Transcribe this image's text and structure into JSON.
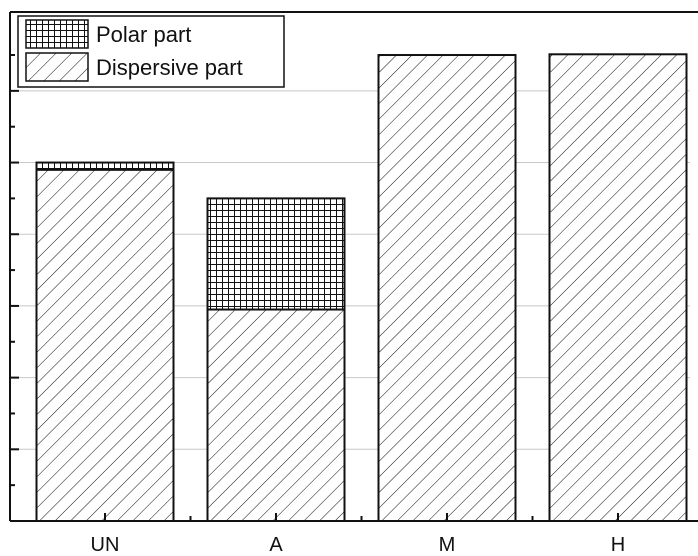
{
  "chart_data": {
    "type": "bar",
    "stacked": true,
    "categories": [
      "UN",
      "A",
      "M",
      "H"
    ],
    "series": [
      {
        "name": "Dispersive part",
        "pattern": "diagonal-hatch",
        "values": [
          49,
          29.5,
          65,
          65.1
        ]
      },
      {
        "name": "Polar part",
        "pattern": "grid-hatch",
        "values": [
          1,
          15.5,
          0,
          0
        ]
      }
    ],
    "ylim": [
      0,
      71
    ],
    "y_gridlines": [
      10,
      20,
      30,
      40,
      50,
      60
    ],
    "y_tick_labels_shown": false,
    "grid": "horizontal",
    "legend_position": "top-left",
    "title": "",
    "xlabel": "",
    "ylabel": "",
    "colors": {
      "stroke": "#111111",
      "grid": "#c8c8c8",
      "background": "#ffffff"
    }
  }
}
